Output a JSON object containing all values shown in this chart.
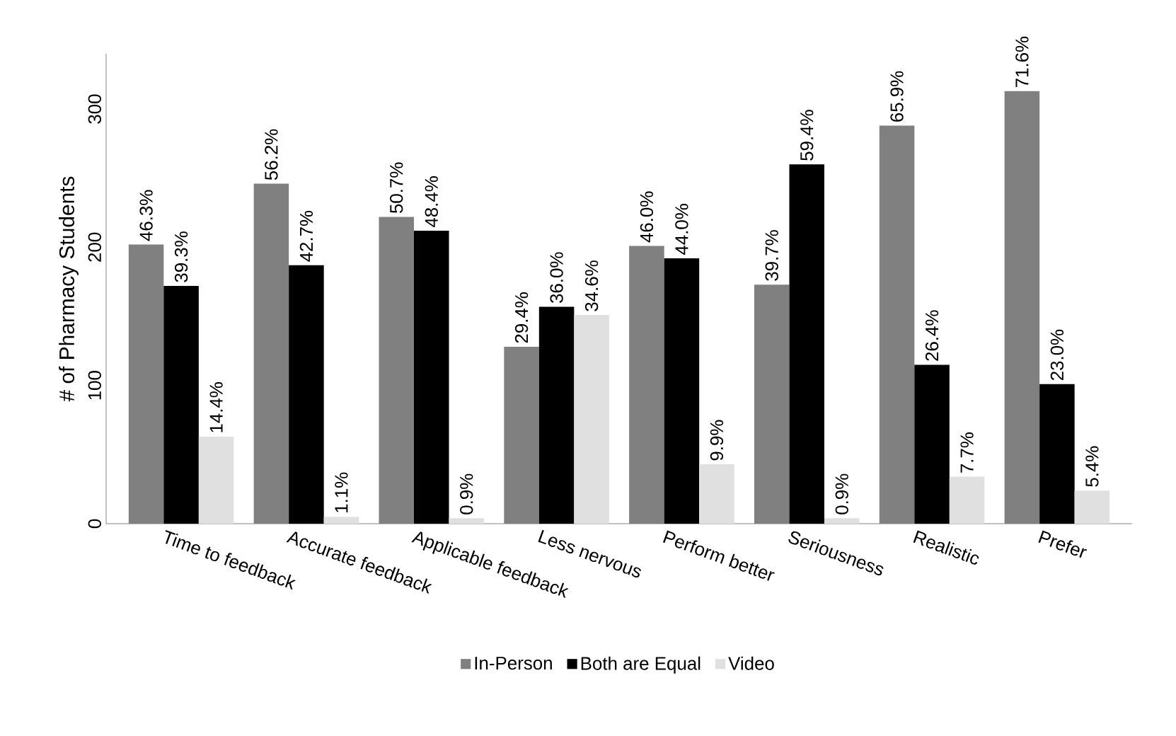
{
  "chart_data": {
    "type": "bar",
    "ylabel": "# of Pharmacy Students",
    "categories": [
      "Time to feedback",
      "Accurate feedback",
      "Applicable feedback",
      "Less nervous",
      "Perform better",
      "Seriousness",
      "Realistic",
      "Prefer"
    ],
    "series": [
      {
        "name": "In-Person",
        "color": "#808080",
        "values": [
          202,
          246,
          222,
          128,
          201,
          173,
          288,
          313
        ]
      },
      {
        "name": "Both are Equal",
        "color": "#000000",
        "values": [
          172,
          187,
          212,
          157,
          192,
          260,
          115,
          101
        ]
      },
      {
        "name": "Video",
        "color": "#e0e0e0",
        "values": [
          63,
          5,
          4,
          151,
          43,
          4,
          34,
          24
        ]
      }
    ],
    "annotations": [
      {
        "text": "46.3%",
        "x": "Time to feedback",
        "y": 202
      },
      {
        "text": "56.2%",
        "x": "Accurate feedback",
        "y": 246
      },
      {
        "text": "50.7%",
        "x": "Applicable feedback",
        "y": 222
      },
      {
        "text": "29.4%",
        "x": "Less nervous",
        "y": 128
      },
      {
        "text": "46.0%",
        "x": "Perform better",
        "y": 201
      },
      {
        "text": "39.7%",
        "x": "Seriousness",
        "y": 173
      },
      {
        "text": "65.9%",
        "x": "Realistic",
        "y": 288
      },
      {
        "text": "71.6%",
        "x": "Prefer",
        "y": 313
      },
      {
        "text": "39.3%",
        "x": "Time to feedback",
        "y": 172
      },
      {
        "text": "42.7%",
        "x": "Accurate feedback",
        "y": 187
      },
      {
        "text": "48.4%",
        "x": "Applicable feedback",
        "y": 212
      },
      {
        "text": "36.0%",
        "x": "Less nervous",
        "y": 157
      },
      {
        "text": "44.0%",
        "x": "Perform better",
        "y": 192
      },
      {
        "text": "59.4%",
        "x": "Seriousness",
        "y": 260
      },
      {
        "text": "26.4%",
        "x": "Realistic",
        "y": 115
      },
      {
        "text": "23.0%",
        "x": "Prefer",
        "y": 101
      },
      {
        "text": "14.4%",
        "x": "Time to feedback",
        "y": 63
      },
      {
        "text": "1.1%",
        "x": "Accurate feedback",
        "y": 5
      },
      {
        "text": "0.9%",
        "x": "Applicable feedback",
        "y": 4
      },
      {
        "text": "34.6%",
        "x": "Less nervous",
        "y": 151
      },
      {
        "text": "9.9%",
        "x": "Perform better",
        "y": 43
      },
      {
        "text": "0.9%",
        "x": "Seriousness",
        "y": 4
      },
      {
        "text": "7.7%",
        "x": "Realistic",
        "y": 34
      },
      {
        "text": "5.4%",
        "x": "Prefer",
        "y": 24
      }
    ],
    "ylim": [
      0,
      340
    ],
    "yticks": [
      0,
      100,
      200,
      300
    ],
    "legend": "bottom"
  }
}
